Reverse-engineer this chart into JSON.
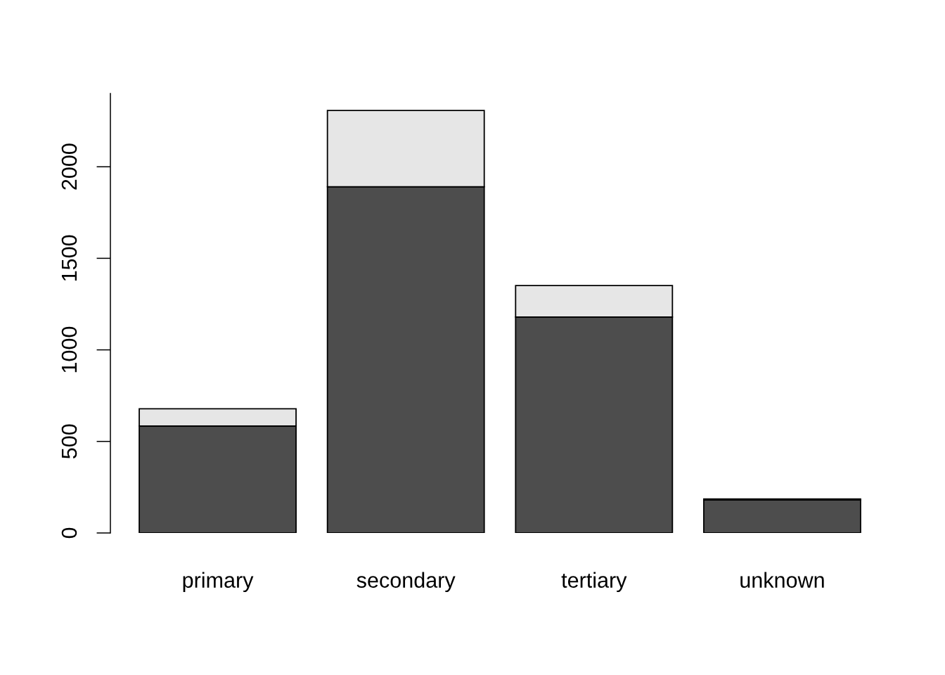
{
  "chart_data": {
    "type": "bar",
    "categories": [
      "primary",
      "secondary",
      "tertiary",
      "unknown"
    ],
    "stacked": true,
    "series": [
      {
        "color": "#4d4d4d",
        "values": [
          584,
          1891,
          1179,
          180
        ]
      },
      {
        "color": "#e6e6e6",
        "values": [
          94,
          416,
          172,
          6
        ]
      }
    ],
    "ylim": [
      0,
      2400
    ],
    "yticks": [
      0,
      500,
      1000,
      1500,
      2000
    ],
    "grid": false,
    "legend": false
  }
}
